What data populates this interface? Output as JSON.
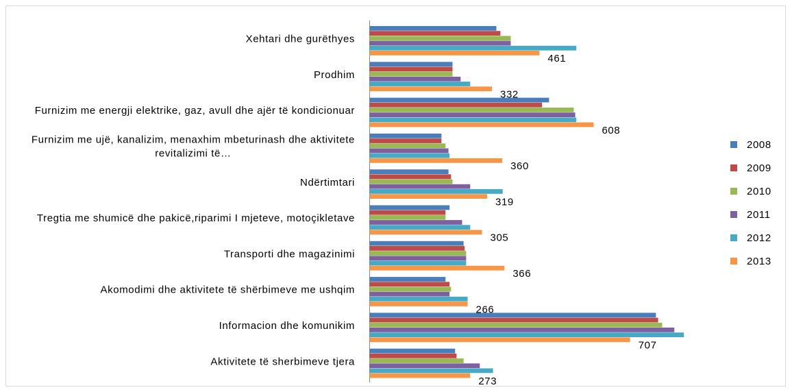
{
  "chart_data": {
    "type": "bar",
    "orientation": "horizontal",
    "categories": [
      "Xehtari dhe gurëthyes",
      "Prodhim",
      "Furnizim me energji elektrike, gaz, avull dhe ajër të kondicionuar",
      "Furnizim me ujë, kanalizim, menaxhim mbeturinash dhe aktivitete revitalizimi të…",
      "Ndërtimtari",
      "Tregtia me shumicë dhe pakicë,riparimi I mjeteve, motoçikletave",
      "Transporti dhe magazinimi",
      "Akomodimi dhe aktivitete të shërbimeve me ushqim",
      "Informacion dhe komunikim",
      "Aktivitete të sherbimeve tjera"
    ],
    "series": [
      {
        "name": "2008",
        "color": "#4a7ebb",
        "values": [
          344,
          225,
          487,
          195,
          214,
          217,
          255,
          206,
          777,
          232
        ]
      },
      {
        "name": "2009",
        "color": "#be4b48",
        "values": [
          355,
          225,
          468,
          195,
          221,
          206,
          258,
          217,
          783,
          236
        ]
      },
      {
        "name": "2010",
        "color": "#98b954",
        "values": [
          383,
          225,
          554,
          206,
          225,
          206,
          262,
          221,
          794,
          255
        ]
      },
      {
        "name": "2011",
        "color": "#7d60a0",
        "values": [
          383,
          247,
          558,
          214,
          273,
          251,
          262,
          217,
          827,
          299
        ]
      },
      {
        "name": "2012",
        "color": "#46aac5",
        "values": [
          561,
          273,
          561,
          217,
          361,
          273,
          262,
          266,
          853,
          335
        ]
      },
      {
        "name": "2013",
        "color": "#f79646",
        "values": [
          461,
          332,
          608,
          360,
          319,
          305,
          366,
          266,
          707,
          273
        ],
        "show_labels": true
      }
    ],
    "xlim": [
      0,
      900
    ],
    "legend": "right"
  }
}
